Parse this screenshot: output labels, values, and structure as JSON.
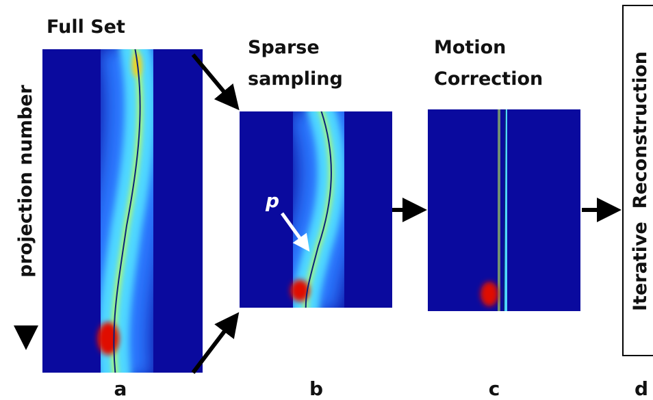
{
  "y_axis_label": "projection number",
  "annotation": "p",
  "panels": [
    {
      "title_lines": [
        "Full Set"
      ],
      "label": "a"
    },
    {
      "title_lines": [
        "Sparse",
        "sampling"
      ],
      "label": "b"
    },
    {
      "title_lines": [
        "Motion",
        "Correction"
      ],
      "label": "c"
    },
    {
      "title": "Iterative  Reconstruction",
      "label": "d"
    }
  ]
}
